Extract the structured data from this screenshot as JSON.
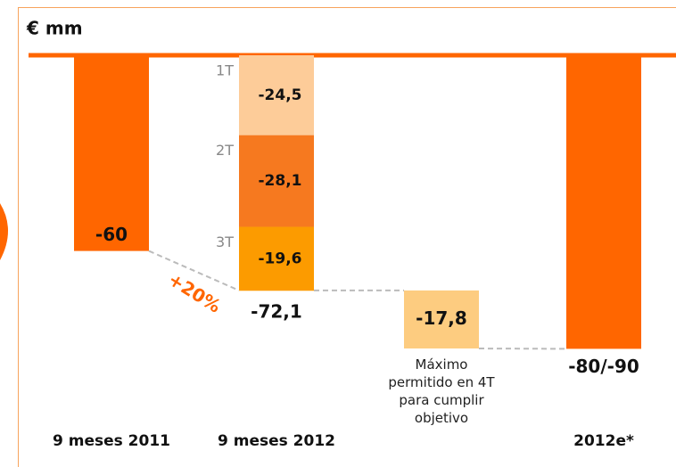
{
  "chart_data": {
    "type": "waterfall",
    "title": "€ mm",
    "categories": [
      "9 meses 2011",
      "9 meses 2012",
      null,
      "2012e*"
    ],
    "kinds": [
      "total",
      "stack",
      "delta",
      "total"
    ],
    "values": [
      -60,
      null,
      -17.8,
      -90
    ],
    "value_labels": [
      "-60",
      null,
      "-17,8",
      "-80/-90"
    ],
    "colors": [
      "#ff6600",
      null,
      "#fdcc80",
      "#ff6600"
    ],
    "stack": {
      "segments": [
        {
          "name": "1T",
          "value": -24.5,
          "label": "-24,5",
          "color": "#fdcc99"
        },
        {
          "name": "2T",
          "value": -28.1,
          "label": "-28,1",
          "color": "#f6791f"
        },
        {
          "name": "3T",
          "value": -19.6,
          "label": "-19,6",
          "color": "#fc9b00"
        }
      ],
      "total": -72.1,
      "total_label": "-72,1"
    },
    "note": "Máximo permitido en 4T para cumplir objetivo",
    "annotation": "+20%",
    "ylim": [
      -100,
      0
    ]
  }
}
